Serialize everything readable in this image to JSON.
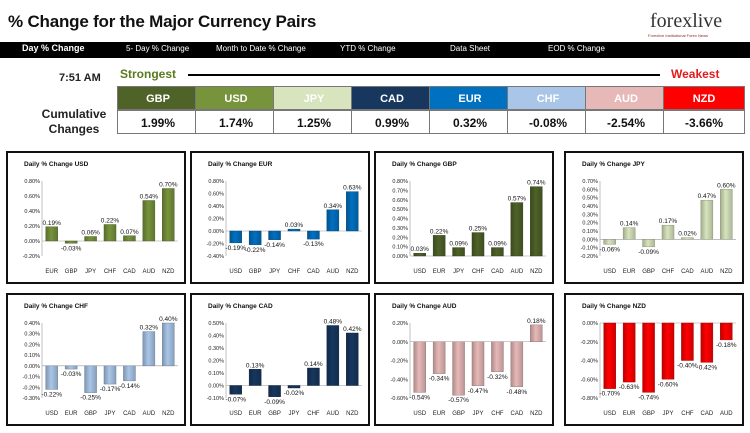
{
  "header": {
    "title": "% Change for the Major Currency Pairs",
    "logo_text": "forexlive",
    "logo_tagline": "Forexlive Institutional Forex News"
  },
  "tabs": [
    {
      "label": "Day % Change"
    },
    {
      "label": "5- Day % Change"
    },
    {
      "label": "Month to Date % Change"
    },
    {
      "label": "YTD % Change"
    },
    {
      "label": "Data Sheet"
    },
    {
      "label": "EOD % Change"
    }
  ],
  "summary": {
    "time": "7:51 AM",
    "strongest_label": "Strongest",
    "weakest_label": "Weakest",
    "cumulative_label_1": "Cumulative",
    "cumulative_label_2": "Changes",
    "currencies": [
      {
        "code": "GBP",
        "value": "1.99%",
        "color": "#4f6228"
      },
      {
        "code": "USD",
        "value": "1.74%",
        "color": "#77933c"
      },
      {
        "code": "JPY",
        "value": "1.25%",
        "color": "#d7e4bd"
      },
      {
        "code": "CAD",
        "value": "0.99%",
        "color": "#17375e"
      },
      {
        "code": "EUR",
        "value": "0.32%",
        "color": "#0070c0"
      },
      {
        "code": "CHF",
        "value": "-0.08%",
        "color": "#a9c6e8"
      },
      {
        "code": "AUD",
        "value": "-2.54%",
        "color": "#e6b9b8"
      },
      {
        "code": "NZD",
        "value": "-3.66%",
        "color": "#ff0000"
      }
    ]
  },
  "chart_data": [
    {
      "type": "bar",
      "title": "Daily % Change USD",
      "categories": [
        "EUR",
        "GBP",
        "JPY",
        "CHF",
        "CAD",
        "AUD",
        "NZD"
      ],
      "values": [
        0.19,
        -0.03,
        0.06,
        0.22,
        0.07,
        0.54,
        0.7
      ],
      "labels": [
        "0.19%",
        "-0.03%",
        "0.06%",
        "0.22%",
        "0.07%",
        "0.54%",
        "0.70%"
      ],
      "ylim": [
        -0.2,
        0.8
      ],
      "ticks": [
        -0.2,
        0.0,
        0.2,
        0.4,
        0.6,
        0.8
      ],
      "tick_labels": [
        "-0.20%",
        "0.00%",
        "0.20%",
        "0.40%",
        "0.60%",
        "0.80%"
      ],
      "color": "#77933c"
    },
    {
      "type": "bar",
      "title": "Daily % Change EUR",
      "categories": [
        "USD",
        "GBP",
        "JPY",
        "CHF",
        "CAD",
        "AUD",
        "NZD"
      ],
      "values": [
        -0.19,
        -0.22,
        -0.14,
        0.03,
        -0.13,
        0.34,
        0.63
      ],
      "labels": [
        "-0.19%",
        "-0.22%",
        "-0.14%",
        "0.03%",
        "-0.13%",
        "0.34%",
        "0.63%"
      ],
      "ylim": [
        -0.4,
        0.8
      ],
      "ticks": [
        -0.4,
        -0.2,
        0.0,
        0.2,
        0.4,
        0.6,
        0.8
      ],
      "tick_labels": [
        "-0.40%",
        "-0.20%",
        "0.00%",
        "0.20%",
        "0.40%",
        "0.60%",
        "0.80%"
      ],
      "color": "#0070c0"
    },
    {
      "type": "bar",
      "title": "Daily % Change GBP",
      "categories": [
        "USD",
        "EUR",
        "JPY",
        "CHF",
        "CAD",
        "AUD",
        "NZD"
      ],
      "values": [
        0.03,
        0.22,
        0.09,
        0.25,
        0.09,
        0.57,
        0.74
      ],
      "labels": [
        "0.03%",
        "0.22%",
        "0.09%",
        "0.25%",
        "0.09%",
        "0.57%",
        "0.74%"
      ],
      "ylim": [
        0.0,
        0.8
      ],
      "ticks": [
        0.0,
        0.1,
        0.2,
        0.3,
        0.4,
        0.5,
        0.6,
        0.7,
        0.8
      ],
      "tick_labels": [
        "0.00%",
        "0.10%",
        "0.20%",
        "0.30%",
        "0.40%",
        "0.50%",
        "0.60%",
        "0.70%",
        "0.80%"
      ],
      "color": "#4f6228"
    },
    {
      "type": "bar",
      "title": "Daily % Change JPY",
      "categories": [
        "USD",
        "EUR",
        "GBP",
        "CHF",
        "CAD",
        "AUD",
        "NZD"
      ],
      "values": [
        -0.06,
        0.14,
        -0.09,
        0.17,
        0.02,
        0.47,
        0.6
      ],
      "labels": [
        "-0.06%",
        "0.14%",
        "-0.09%",
        "0.17%",
        "0.02%",
        "0.47%",
        "0.60%"
      ],
      "ylim": [
        -0.2,
        0.7
      ],
      "ticks": [
        -0.2,
        -0.1,
        0.0,
        0.1,
        0.2,
        0.3,
        0.4,
        0.5,
        0.6,
        0.7
      ],
      "tick_labels": [
        "-0.20%",
        "-0.10%",
        "0.00%",
        "0.10%",
        "0.20%",
        "0.30%",
        "0.40%",
        "0.50%",
        "0.60%",
        "0.70%"
      ],
      "color": "#d7e4bd"
    },
    {
      "type": "bar",
      "title": "Daily % Change CHF",
      "categories": [
        "USD",
        "EUR",
        "GBP",
        "JPY",
        "CAD",
        "AUD",
        "NZD"
      ],
      "values": [
        -0.22,
        -0.03,
        -0.25,
        -0.17,
        -0.14,
        0.32,
        0.4
      ],
      "labels": [
        "-0.22%",
        "-0.03%",
        "-0.25%",
        "-0.17%",
        "-0.14%",
        "0.32%",
        "0.40%"
      ],
      "ylim": [
        -0.3,
        0.4
      ],
      "ticks": [
        -0.3,
        -0.2,
        -0.1,
        0.0,
        0.1,
        0.2,
        0.3,
        0.4
      ],
      "tick_labels": [
        "-0.30%",
        "-0.20%",
        "-0.10%",
        "0.00%",
        "0.10%",
        "0.20%",
        "0.30%",
        "0.40%"
      ],
      "color": "#a9c6e8"
    },
    {
      "type": "bar",
      "title": "Daily % Change CAD",
      "categories": [
        "USD",
        "EUR",
        "GBP",
        "JPY",
        "CHF",
        "AUD",
        "NZD"
      ],
      "values": [
        -0.07,
        0.13,
        -0.09,
        -0.02,
        0.14,
        0.48,
        0.42
      ],
      "labels": [
        "-0.07%",
        "0.13%",
        "-0.09%",
        "-0.02%",
        "0.14%",
        "0.48%",
        "0.42%"
      ],
      "ylim": [
        -0.1,
        0.5
      ],
      "ticks": [
        -0.1,
        0.0,
        0.1,
        0.2,
        0.3,
        0.4,
        0.5
      ],
      "tick_labels": [
        "-0.10%",
        "0.00%",
        "0.10%",
        "0.20%",
        "0.30%",
        "0.40%",
        "0.50%"
      ],
      "color": "#17375e"
    },
    {
      "type": "bar",
      "title": "Daily % Change AUD",
      "categories": [
        "USD",
        "EUR",
        "GBP",
        "JPY",
        "CHF",
        "CAD",
        "NZD"
      ],
      "values": [
        -0.54,
        -0.34,
        -0.57,
        -0.47,
        -0.32,
        -0.48,
        0.18
      ],
      "labels": [
        "-0.54%",
        "-0.34%",
        "-0.57%",
        "-0.47%",
        "-0.32%",
        "-0.48%",
        "0.18%"
      ],
      "ylim": [
        -0.6,
        0.2
      ],
      "ticks": [
        -0.6,
        -0.4,
        -0.2,
        0.0,
        0.2
      ],
      "tick_labels": [
        "-0.60%",
        "-0.40%",
        "-0.20%",
        "0.00%",
        "0.20%"
      ],
      "color": "#e6b9b8"
    },
    {
      "type": "bar",
      "title": "Daily % Change NZD",
      "categories": [
        "USD",
        "EUR",
        "GBP",
        "JPY",
        "CHF",
        "CAD",
        "AUD"
      ],
      "values": [
        -0.7,
        -0.63,
        -0.74,
        -0.6,
        -0.4,
        -0.42,
        -0.18
      ],
      "labels": [
        "-0.70%",
        "-0.63%",
        "-0.74%",
        "-0.60%",
        "-0.40%",
        "-0.42%",
        "-0.18%"
      ],
      "ylim": [
        -0.8,
        0.0
      ],
      "ticks": [
        -0.8,
        -0.6,
        -0.4,
        -0.2,
        0.0
      ],
      "tick_labels": [
        "-0.80%",
        "-0.60%",
        "-0.40%",
        "-0.20%",
        "0.00%"
      ],
      "color": "#ff0000"
    }
  ]
}
